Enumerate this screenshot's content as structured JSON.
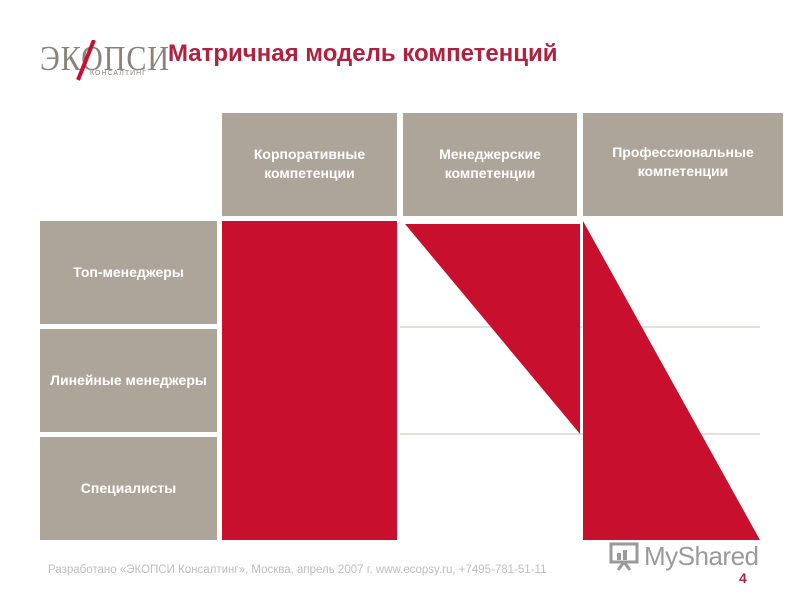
{
  "logo": {
    "main": "ЭКОПСИ",
    "sub": "КОНСАЛТИНГ"
  },
  "title": "Матричная модель компетенций",
  "columns": [
    {
      "id": "corporate",
      "label": "Корпоративные компетенции"
    },
    {
      "id": "managerial",
      "label": "Менеджерские компетенции"
    },
    {
      "id": "professional",
      "label": "Профессиональные компетенции"
    }
  ],
  "rows": [
    {
      "id": "top",
      "label": "Топ-менеджеры"
    },
    {
      "id": "line",
      "label": "Линейные менеджеры"
    },
    {
      "id": "spec",
      "label": "Специалисты"
    }
  ],
  "footer": "Разработано «ЭКОПСИ Консалтинг», Москва, апрель 2007 г. www.ecopsy.ru, +7495-781-51-11",
  "page_number": "4",
  "watermark": "MyShared",
  "colors": {
    "accent": "#c8102e",
    "header_bg": "#ada59a",
    "title": "#b0213f"
  }
}
